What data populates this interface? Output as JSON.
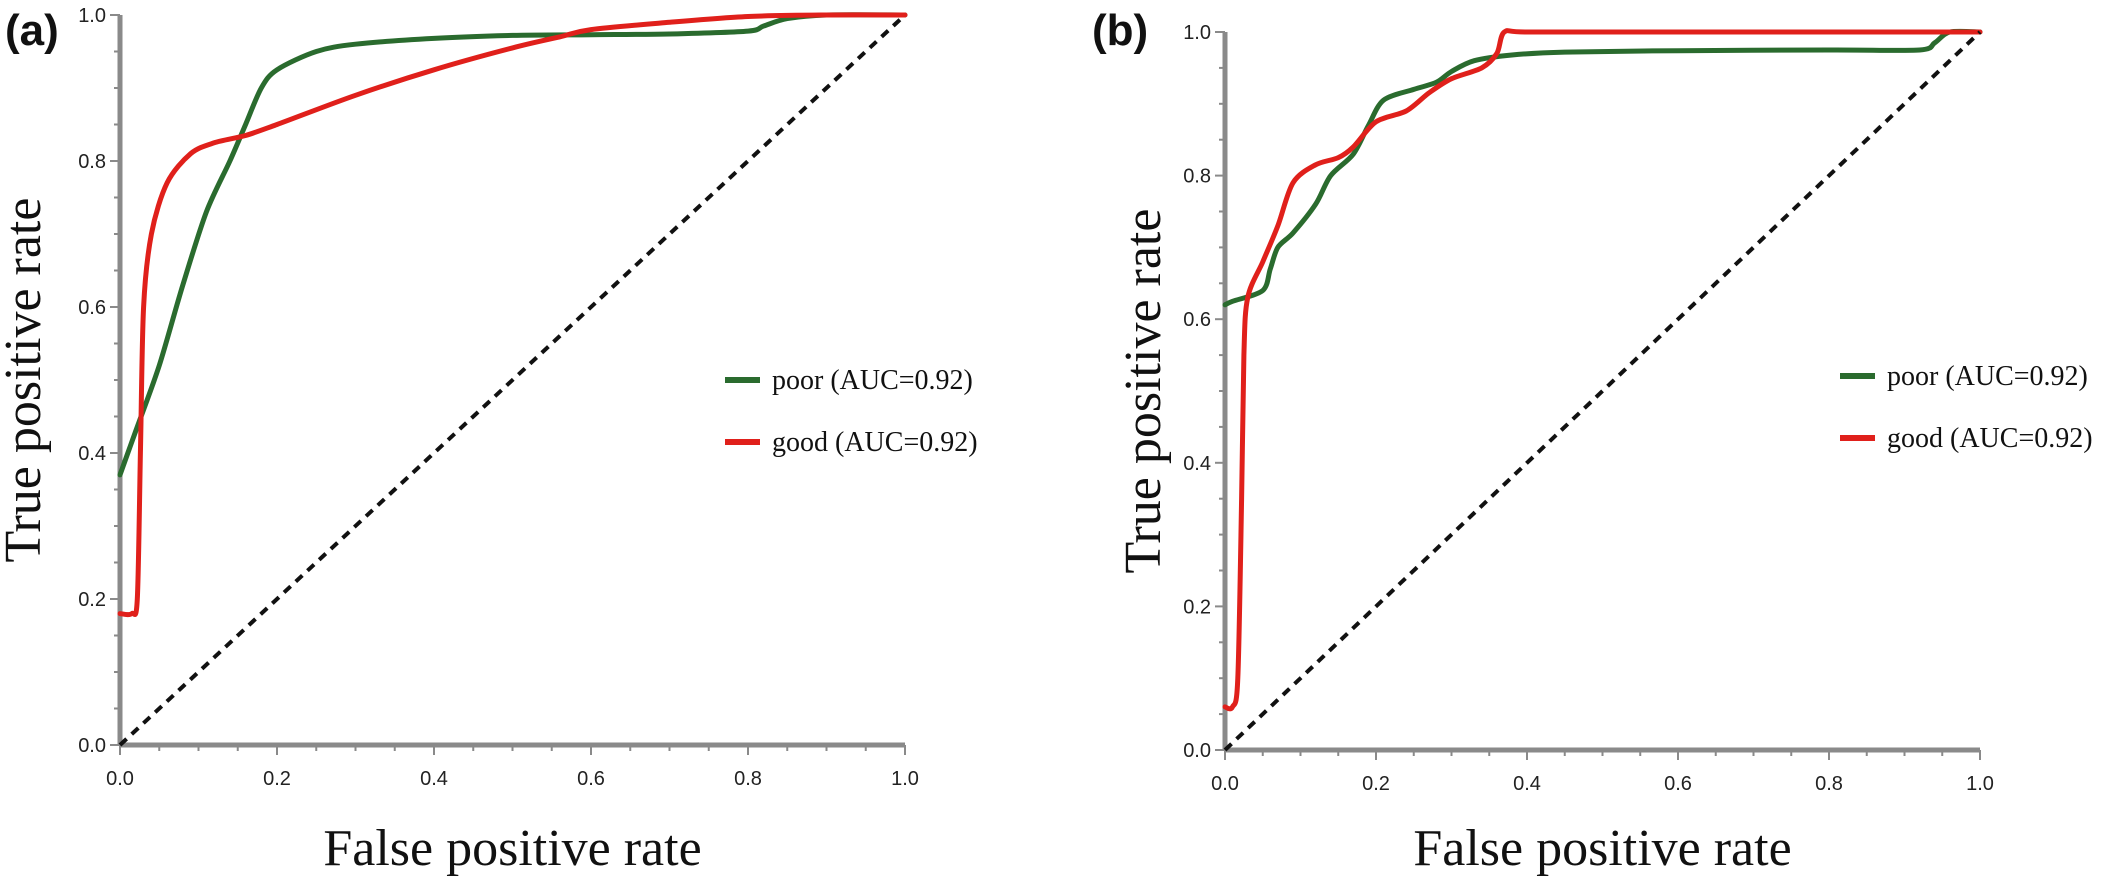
{
  "chart_data": [
    {
      "type": "line",
      "panel_label": "(a)",
      "xlabel": "False positive rate",
      "ylabel": "True positive rate",
      "xlim": [
        0,
        1
      ],
      "ylim": [
        0,
        1
      ],
      "xticks": [
        "0.0",
        "0.2",
        "0.4",
        "0.6",
        "0.8",
        "1.0"
      ],
      "yticks": [
        "0.0",
        "0.2",
        "0.4",
        "0.6",
        "0.8",
        "1.0"
      ],
      "grid": false,
      "legend_position": "right",
      "series": [
        {
          "name": "poor (AUC=0.92)",
          "color": "#2a6b2e",
          "x": [
            0.0,
            0.02,
            0.05,
            0.08,
            0.11,
            0.14,
            0.16,
            0.18,
            0.2,
            0.25,
            0.3,
            0.4,
            0.5,
            0.6,
            0.7,
            0.8,
            0.82,
            0.85,
            0.9,
            1.0
          ],
          "y": [
            0.37,
            0.43,
            0.52,
            0.63,
            0.73,
            0.8,
            0.85,
            0.9,
            0.925,
            0.95,
            0.96,
            0.968,
            0.972,
            0.973,
            0.974,
            0.978,
            0.985,
            0.995,
            1.0,
            1.0
          ]
        },
        {
          "name": "good (AUC=0.92)",
          "color": "#e0201b",
          "x": [
            0.0,
            0.015,
            0.022,
            0.026,
            0.03,
            0.04,
            0.06,
            0.09,
            0.12,
            0.16,
            0.2,
            0.3,
            0.4,
            0.5,
            0.56,
            0.6,
            0.7,
            0.8,
            0.9,
            1.0
          ],
          "y": [
            0.18,
            0.18,
            0.2,
            0.4,
            0.6,
            0.7,
            0.77,
            0.81,
            0.825,
            0.835,
            0.85,
            0.89,
            0.925,
            0.955,
            0.97,
            0.98,
            0.99,
            0.998,
            1.0,
            1.0
          ]
        },
        {
          "name": "",
          "color": "#111111",
          "dashed": true,
          "x": [
            0,
            1
          ],
          "y": [
            0,
            1
          ]
        }
      ]
    },
    {
      "type": "line",
      "panel_label": "(b)",
      "xlabel": "False positive rate",
      "ylabel": "True positive rate",
      "xlim": [
        0,
        1
      ],
      "ylim": [
        0,
        1
      ],
      "xticks": [
        "0.0",
        "0.2",
        "0.4",
        "0.6",
        "0.8",
        "1.0"
      ],
      "yticks": [
        "0.0",
        "0.2",
        "0.4",
        "0.6",
        "0.8",
        "1.0"
      ],
      "grid": false,
      "legend_position": "right",
      "series": [
        {
          "name": "poor (AUC=0.92)",
          "color": "#2a6b2e",
          "x": [
            0.0,
            0.01,
            0.05,
            0.06,
            0.07,
            0.09,
            0.12,
            0.14,
            0.17,
            0.19,
            0.21,
            0.25,
            0.28,
            0.3,
            0.33,
            0.38,
            0.45,
            0.6,
            0.8,
            0.92,
            0.94,
            0.96,
            1.0
          ],
          "y": [
            0.62,
            0.625,
            0.64,
            0.67,
            0.7,
            0.72,
            0.76,
            0.8,
            0.83,
            0.87,
            0.905,
            0.92,
            0.93,
            0.945,
            0.96,
            0.968,
            0.972,
            0.974,
            0.975,
            0.975,
            0.985,
            1.0,
            1.0
          ]
        },
        {
          "name": "good (AUC=0.92)",
          "color": "#e0201b",
          "x": [
            0.0,
            0.01,
            0.017,
            0.022,
            0.025,
            0.03,
            0.05,
            0.07,
            0.09,
            0.12,
            0.15,
            0.17,
            0.2,
            0.24,
            0.27,
            0.3,
            0.34,
            0.36,
            0.37,
            0.4,
            0.6,
            0.8,
            1.0
          ],
          "y": [
            0.06,
            0.06,
            0.1,
            0.35,
            0.55,
            0.63,
            0.68,
            0.73,
            0.79,
            0.815,
            0.825,
            0.84,
            0.875,
            0.89,
            0.915,
            0.935,
            0.95,
            0.97,
            1.0,
            1.0,
            1.0,
            1.0,
            1.0
          ]
        },
        {
          "name": "",
          "color": "#111111",
          "dashed": true,
          "x": [
            0,
            1
          ],
          "y": [
            0,
            1
          ]
        }
      ]
    }
  ]
}
